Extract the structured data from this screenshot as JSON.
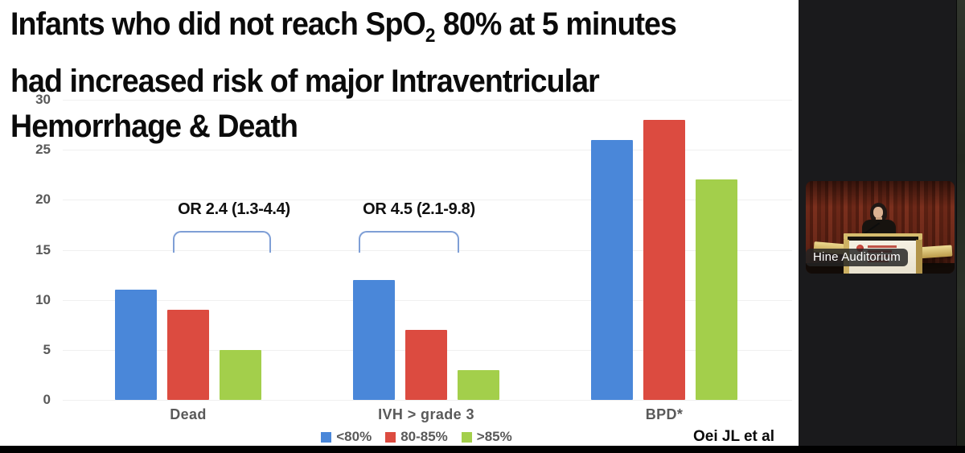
{
  "slide": {
    "title": {
      "line1_pre": "Infants who did not reach SpO",
      "line1_sub": "2",
      "line1_post": " 80% at 5 minutes",
      "line2": "had increased risk of major Intraventricular",
      "line3": "Hemorrhage & Death"
    },
    "source_credit": "Oei JL et al"
  },
  "chart_data": {
    "type": "bar",
    "title": "",
    "categories": [
      "Dead",
      "IVH > grade 3",
      "BPD*"
    ],
    "series": [
      {
        "name": "<80%",
        "color": "#4a87d9",
        "values": [
          11,
          12,
          26
        ]
      },
      {
        "name": "80-85%",
        "color": "#dc4b40",
        "values": [
          9,
          7,
          28
        ]
      },
      {
        "name": ">85%",
        "color": "#a3cf4b",
        "values": [
          5,
          3,
          22
        ]
      }
    ],
    "annotations": [
      {
        "text": "OR 2.4 (1.3-4.4)",
        "over_category": "Dead"
      },
      {
        "text": "OR 4.5 (2.1-9.8)",
        "over_category": "IVH > grade 3"
      }
    ],
    "ylabel": "",
    "xlabel": "",
    "ylim": [
      0,
      30
    ],
    "yticks": [
      0,
      5,
      10,
      15,
      20,
      25,
      30
    ],
    "grid": "horizontal-faint",
    "legend_position": "bottom-center",
    "axis_text_color": "#595959",
    "bracket_color": "#7f9fd6"
  },
  "video_panel": {
    "location_label": "Hine Auditorium",
    "scene": "speaker at wooden podium, maroon stage curtain"
  }
}
